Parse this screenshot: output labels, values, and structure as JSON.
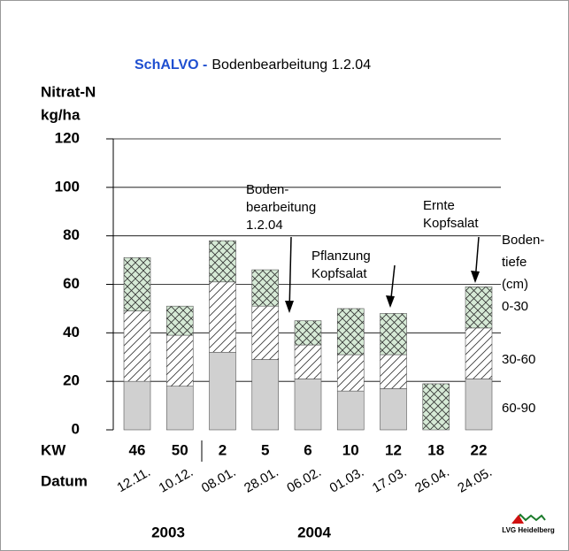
{
  "chart_data": {
    "type": "stacked_bar",
    "title": {
      "prefix": "SchALVO -",
      "text": "Bodenbearbeitung 1.2.04"
    },
    "y_label": [
      "Nitrat-N",
      "kg/ha"
    ],
    "categories_label": "KW",
    "dates_label": "Datum",
    "categories": [
      "46",
      "50",
      "2",
      "5",
      "6",
      "10",
      "12",
      "18",
      "22"
    ],
    "dates": [
      "12.11.",
      "10.12.",
      "08.01.",
      "28.01.",
      "06.02.",
      "01.03.",
      "17.03.",
      "26.04.",
      "24.05."
    ],
    "years": [
      "2003",
      "2004"
    ],
    "legend_title": [
      "Boden-",
      "tiefe",
      "(cm)"
    ],
    "series": [
      {
        "name": "60-90",
        "color": "#d0d0d0",
        "hatch": "none",
        "values": [
          20,
          18,
          32,
          29,
          21,
          16,
          17,
          0,
          21
        ]
      },
      {
        "name": "30-60",
        "color": "#ffffff",
        "hatch": "diagonal",
        "values": [
          29,
          21,
          29,
          22,
          14,
          15,
          14,
          0,
          21
        ]
      },
      {
        "name": "0-30",
        "color": "#d6ead6",
        "hatch": "cross",
        "values": [
          22,
          12,
          17,
          15,
          10,
          19,
          17,
          19,
          17
        ]
      }
    ],
    "annotations": [
      {
        "lines": [
          "Boden-",
          "bearbeitung",
          "1.2.04"
        ]
      },
      {
        "lines": [
          "Pflanzung",
          "Kopfsalat"
        ]
      },
      {
        "lines": [
          "Ernte",
          "Kopfsalat"
        ]
      }
    ],
    "logo": "LVG Heidelberg",
    "ylim": [
      0,
      120
    ],
    "yticks": [
      0,
      20,
      40,
      60,
      80,
      100,
      120
    ],
    "grid": true
  }
}
